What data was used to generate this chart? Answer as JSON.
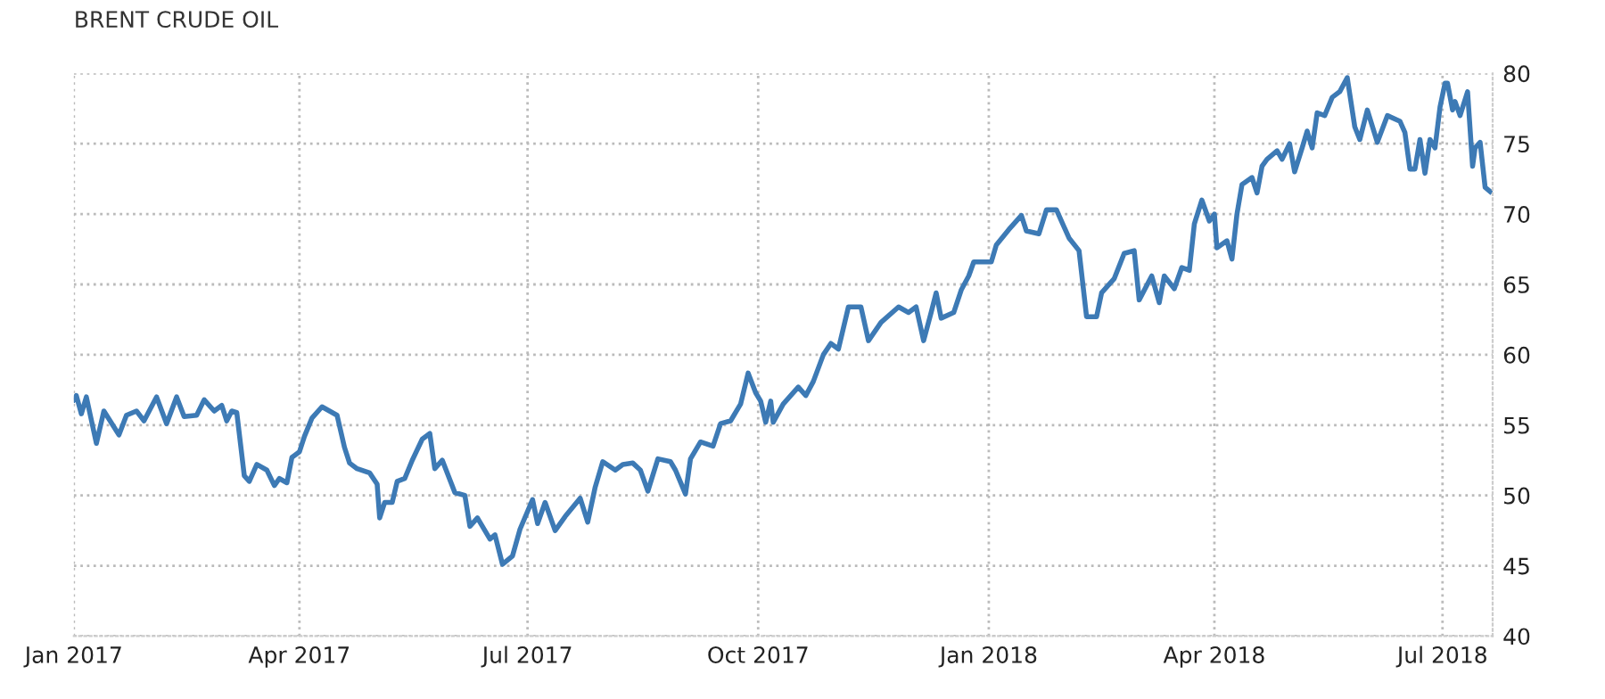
{
  "chart_data": {
    "type": "line",
    "title": "BRENT CRUDE OIL",
    "x": [
      "2017-01-01",
      "2017-01-02",
      "2017-01-04",
      "2017-01-06",
      "2017-01-10",
      "2017-01-13",
      "2017-01-19",
      "2017-01-22",
      "2017-01-26",
      "2017-01-29",
      "2017-02-03",
      "2017-02-07",
      "2017-02-11",
      "2017-02-14",
      "2017-02-19",
      "2017-02-22",
      "2017-02-26",
      "2017-03-01",
      "2017-03-03",
      "2017-03-05",
      "2017-03-07",
      "2017-03-10",
      "2017-03-12",
      "2017-03-15",
      "2017-03-19",
      "2017-03-22",
      "2017-03-24",
      "2017-03-27",
      "2017-03-29",
      "2017-04-01",
      "2017-04-03",
      "2017-04-06",
      "2017-04-10",
      "2017-04-16",
      "2017-04-19",
      "2017-04-21",
      "2017-04-24",
      "2017-04-29",
      "2017-05-02",
      "2017-05-03",
      "2017-05-05",
      "2017-05-08",
      "2017-05-10",
      "2017-05-13",
      "2017-05-16",
      "2017-05-20",
      "2017-05-23",
      "2017-05-25",
      "2017-05-28",
      "2017-06-02",
      "2017-06-06",
      "2017-06-08",
      "2017-06-11",
      "2017-06-16",
      "2017-06-18",
      "2017-06-21",
      "2017-06-25",
      "2017-06-28",
      "2017-07-03",
      "2017-07-05",
      "2017-07-08",
      "2017-07-12",
      "2017-07-16",
      "2017-07-22",
      "2017-07-25",
      "2017-07-28",
      "2017-07-31",
      "2017-08-05",
      "2017-08-08",
      "2017-08-12",
      "2017-08-15",
      "2017-08-18",
      "2017-08-22",
      "2017-08-27",
      "2017-08-29",
      "2017-09-02",
      "2017-09-04",
      "2017-09-08",
      "2017-09-13",
      "2017-09-16",
      "2017-09-20",
      "2017-09-24",
      "2017-09-27",
      "2017-09-30",
      "2017-10-02",
      "2017-10-04",
      "2017-10-06",
      "2017-10-07",
      "2017-10-11",
      "2017-10-17",
      "2017-10-20",
      "2017-10-23",
      "2017-10-27",
      "2017-10-30",
      "2017-11-02",
      "2017-11-06",
      "2017-11-11",
      "2017-11-14",
      "2017-11-19",
      "2017-11-26",
      "2017-11-30",
      "2017-12-03",
      "2017-12-06",
      "2017-12-09",
      "2017-12-11",
      "2017-12-13",
      "2017-12-18",
      "2017-12-21",
      "2017-12-24",
      "2017-12-26",
      "2018-01-02",
      "2018-01-04",
      "2018-01-09",
      "2018-01-14",
      "2018-01-16",
      "2018-01-21",
      "2018-01-24",
      "2018-01-28",
      "2018-01-31",
      "2018-02-02",
      "2018-02-06",
      "2018-02-09",
      "2018-02-13",
      "2018-02-15",
      "2018-02-20",
      "2018-02-24",
      "2018-02-28",
      "2018-03-02",
      "2018-03-07",
      "2018-03-10",
      "2018-03-12",
      "2018-03-16",
      "2018-03-19",
      "2018-03-22",
      "2018-03-24",
      "2018-03-27",
      "2018-03-30",
      "2018-04-01",
      "2018-04-02",
      "2018-04-06",
      "2018-04-08",
      "2018-04-10",
      "2018-04-12",
      "2018-04-16",
      "2018-04-18",
      "2018-04-20",
      "2018-04-22",
      "2018-04-26",
      "2018-04-28",
      "2018-05-01",
      "2018-05-03",
      "2018-05-06",
      "2018-05-08",
      "2018-05-10",
      "2018-05-12",
      "2018-05-15",
      "2018-05-18",
      "2018-05-21",
      "2018-05-24",
      "2018-05-27",
      "2018-05-29",
      "2018-06-01",
      "2018-06-05",
      "2018-06-09",
      "2018-06-14",
      "2018-06-16",
      "2018-06-18",
      "2018-06-20",
      "2018-06-22",
      "2018-06-24",
      "2018-06-26",
      "2018-06-28",
      "2018-06-30",
      "2018-07-02",
      "2018-07-03",
      "2018-07-05",
      "2018-07-06",
      "2018-07-08",
      "2018-07-11",
      "2018-07-13",
      "2018-07-14",
      "2018-07-16",
      "2018-07-18",
      "2018-07-20"
    ],
    "series": [
      {
        "color": "#3d7ab5",
        "values": [
          56.8,
          57.1,
          55.8,
          57.0,
          53.7,
          56.0,
          54.3,
          55.7,
          56.0,
          55.3,
          57.0,
          55.1,
          57.0,
          55.6,
          55.7,
          56.8,
          56.0,
          56.4,
          55.3,
          56.0,
          55.9,
          51.4,
          51.0,
          52.2,
          51.8,
          50.7,
          51.2,
          50.9,
          52.7,
          53.1,
          54.2,
          55.5,
          56.3,
          55.7,
          53.4,
          52.3,
          51.9,
          51.6,
          50.8,
          48.4,
          49.5,
          49.5,
          51.0,
          51.2,
          52.5,
          54.0,
          54.4,
          51.9,
          52.5,
          50.2,
          50.0,
          47.8,
          48.4,
          46.9,
          47.2,
          45.1,
          45.7,
          47.6,
          49.7,
          48.0,
          49.5,
          47.5,
          48.5,
          49.8,
          48.1,
          50.6,
          52.4,
          51.8,
          52.2,
          52.3,
          51.8,
          50.3,
          52.6,
          52.4,
          51.8,
          50.1,
          52.6,
          53.8,
          53.5,
          55.1,
          55.3,
          56.5,
          58.7,
          57.3,
          56.7,
          55.2,
          56.7,
          55.2,
          56.5,
          57.7,
          57.1,
          58.1,
          60.0,
          60.8,
          60.4,
          63.4,
          63.4,
          61.0,
          62.3,
          63.4,
          63.0,
          63.4,
          61.0,
          63.0,
          64.4,
          62.6,
          63.0,
          64.6,
          65.6,
          66.6,
          66.6,
          67.8,
          68.9,
          69.9,
          68.8,
          68.6,
          70.3,
          70.3,
          69.1,
          68.3,
          67.4,
          62.7,
          62.7,
          64.4,
          65.4,
          67.2,
          67.4,
          63.9,
          65.6,
          63.7,
          65.6,
          64.7,
          66.2,
          66.0,
          69.3,
          71.0,
          69.5,
          70.0,
          67.6,
          68.1,
          66.8,
          70.0,
          72.1,
          72.6,
          71.5,
          73.4,
          73.9,
          74.5,
          73.9,
          75.0,
          73.0,
          74.7,
          75.9,
          74.7,
          77.2,
          77.0,
          78.3,
          78.7,
          79.7,
          76.2,
          75.3,
          77.4,
          75.1,
          77.0,
          76.6,
          75.8,
          73.2,
          73.2,
          75.3,
          72.9,
          75.3,
          74.7,
          77.6,
          79.3,
          79.3,
          77.4,
          78.0,
          77.0,
          78.7,
          73.4,
          74.7,
          75.1,
          71.9,
          71.6
        ]
      }
    ],
    "xlim": [
      "2017-01-01",
      "2018-07-21"
    ],
    "xticks": [
      {
        "value": "2017-01-01",
        "label": "Jan 2017"
      },
      {
        "value": "2017-04-01",
        "label": "Apr 2017"
      },
      {
        "value": "2017-07-01",
        "label": "Jul 2017"
      },
      {
        "value": "2017-10-01",
        "label": "Oct 2017"
      },
      {
        "value": "2018-01-01",
        "label": "Jan 2018"
      },
      {
        "value": "2018-04-01",
        "label": "Apr 2018"
      },
      {
        "value": "2018-07-01",
        "label": "Jul 2018"
      }
    ],
    "ylim": [
      40,
      80
    ],
    "yticks": [
      40,
      45,
      50,
      55,
      60,
      65,
      70,
      75,
      80
    ],
    "grid": true,
    "line_style": "solid",
    "marker": "none"
  }
}
